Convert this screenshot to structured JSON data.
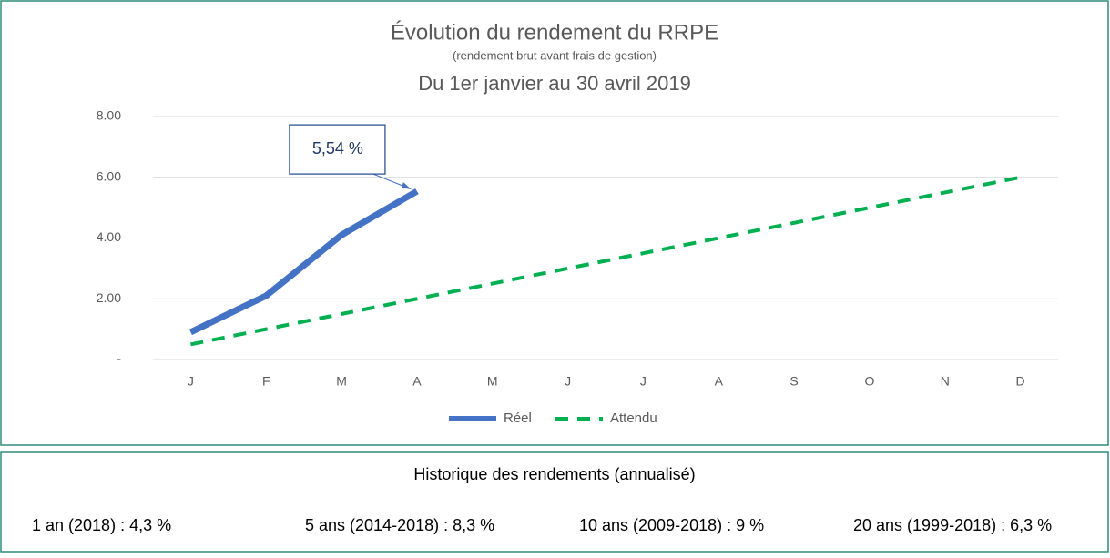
{
  "chart_data": {
    "type": "line",
    "title": "Évolution du rendement du RRPE",
    "subtitle": "(rendement brut avant frais de gestion)",
    "period": "Du 1er janvier au 30 avril 2019",
    "categories": [
      "J",
      "F",
      "M",
      "A",
      "M",
      "J",
      "J",
      "A",
      "S",
      "O",
      "N",
      "D"
    ],
    "series": [
      {
        "name": "Réel",
        "color": "#4472c4",
        "style": "solid",
        "values": [
          0.9,
          2.1,
          4.1,
          5.54,
          null,
          null,
          null,
          null,
          null,
          null,
          null,
          null
        ],
        "value_labels": [
          null,
          null,
          null,
          "5,54 %",
          null,
          null,
          null,
          null,
          null,
          null,
          null,
          null
        ]
      },
      {
        "name": "Attendu",
        "color": "#00b050",
        "style": "dashed",
        "values": [
          0.5,
          1.0,
          1.5,
          2.0,
          2.5,
          3.0,
          3.5,
          4.0,
          4.5,
          5.0,
          5.5,
          6.0
        ]
      }
    ],
    "ylim": [
      0,
      8
    ],
    "yticks": [
      {
        "value": 0,
        "label": "-"
      },
      {
        "value": 2,
        "label": "2.00"
      },
      {
        "value": 4,
        "label": "4.00"
      },
      {
        "value": 6,
        "label": "6.00"
      },
      {
        "value": 8,
        "label": "8.00"
      }
    ],
    "grid": true,
    "legend": "bottom"
  },
  "history": {
    "title": "Historique des rendements (annualisé)",
    "items": [
      "1 an (2018) : 4,3 %",
      "5 ans (2014-2018) : 8,3 %",
      "10 ans (2009-2018) : 9 %",
      "20 ans (1999-2018) : 6,3 %"
    ]
  }
}
